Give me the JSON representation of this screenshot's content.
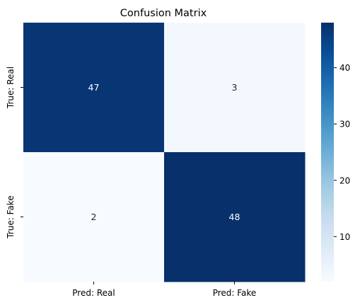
{
  "chart_data": {
    "type": "heatmap",
    "title": "Confusion Matrix",
    "x_labels": [
      "Pred: Real",
      "Pred: Fake"
    ],
    "y_labels": [
      "True: Real",
      "True: Fake"
    ],
    "values": [
      [
        47,
        3
      ],
      [
        2,
        48
      ]
    ],
    "colormap": "Blues",
    "annotations": true,
    "colorbar": {
      "ticks": [
        10,
        20,
        30,
        40
      ],
      "range": [
        2,
        48
      ]
    },
    "colors": {
      "low": "#f7fbff",
      "high": "#08306b",
      "text_on_dark": "#ffffff",
      "text_on_light": "#262626"
    }
  }
}
